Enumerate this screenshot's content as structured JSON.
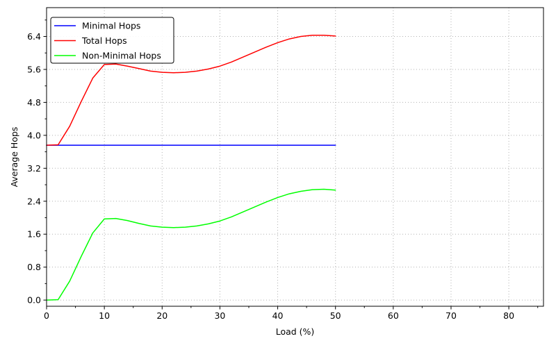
{
  "chart_data": {
    "type": "line",
    "xlabel": "Load (%)",
    "ylabel": "Average Hops",
    "xlim": [
      0,
      86
    ],
    "ylim": [
      -0.15,
      7.1
    ],
    "x_ticks": [
      0,
      10,
      20,
      30,
      40,
      50,
      60,
      70,
      80
    ],
    "x_tick_labels": [
      "0",
      "10",
      "20",
      "30",
      "40",
      "50",
      "60",
      "70",
      "80"
    ],
    "x_minor_ticks": [
      5,
      15,
      25,
      35,
      45,
      55,
      65,
      75,
      85
    ],
    "y_ticks": [
      0.0,
      0.8,
      1.6,
      2.4,
      3.2,
      4.0,
      4.8,
      5.6,
      6.4
    ],
    "y_tick_labels": [
      "0.0",
      "0.8",
      "1.6",
      "2.4",
      "3.2",
      "4.0",
      "4.8",
      "5.6",
      "6.4"
    ],
    "y_minor_ticks": [
      0.4,
      1.2,
      2.0,
      2.8,
      3.6,
      4.4,
      5.2,
      6.0,
      6.8
    ],
    "grid": true,
    "legend_position": "top-left",
    "x": [
      0,
      2,
      4,
      6,
      8,
      10,
      12,
      14,
      16,
      18,
      20,
      22,
      24,
      26,
      28,
      30,
      32,
      34,
      36,
      38,
      40,
      42,
      44,
      46,
      48,
      50
    ],
    "series": [
      {
        "name": "Minimal Hops",
        "color": "#0000ff",
        "values": [
          3.76,
          3.76,
          3.76,
          3.76,
          3.76,
          3.76,
          3.76,
          3.76,
          3.76,
          3.76,
          3.76,
          3.76,
          3.76,
          3.76,
          3.76,
          3.76,
          3.76,
          3.76,
          3.76,
          3.76,
          3.76,
          3.76,
          3.76,
          3.76,
          3.76,
          3.76
        ]
      },
      {
        "name": "Total Hops",
        "color": "#ff0000",
        "values": [
          3.76,
          3.77,
          4.22,
          4.82,
          5.39,
          5.72,
          5.73,
          5.68,
          5.62,
          5.56,
          5.53,
          5.52,
          5.53,
          5.56,
          5.61,
          5.68,
          5.78,
          5.9,
          6.02,
          6.14,
          6.25,
          6.34,
          6.4,
          6.43,
          6.43,
          6.41
        ]
      },
      {
        "name": "Non-Minimal Hops",
        "color": "#00ff00",
        "values": [
          0.0,
          0.01,
          0.46,
          1.06,
          1.63,
          1.97,
          1.98,
          1.93,
          1.86,
          1.8,
          1.77,
          1.76,
          1.77,
          1.8,
          1.85,
          1.92,
          2.02,
          2.14,
          2.26,
          2.38,
          2.49,
          2.58,
          2.64,
          2.68,
          2.69,
          2.67
        ]
      }
    ]
  }
}
